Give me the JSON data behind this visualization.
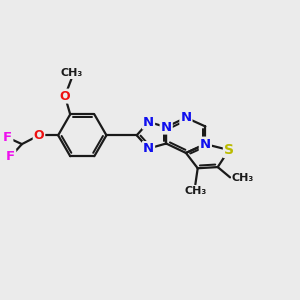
{
  "bg_color": "#ebebeb",
  "bond_color": "#1a1a1a",
  "bond_width": 1.6,
  "colors": {
    "N": "#1010ee",
    "O": "#ee1010",
    "S": "#bbbb00",
    "F": "#ee10ee",
    "C": "#1a1a1a"
  },
  "xlim": [
    0,
    10
  ],
  "ylim": [
    0,
    10
  ]
}
